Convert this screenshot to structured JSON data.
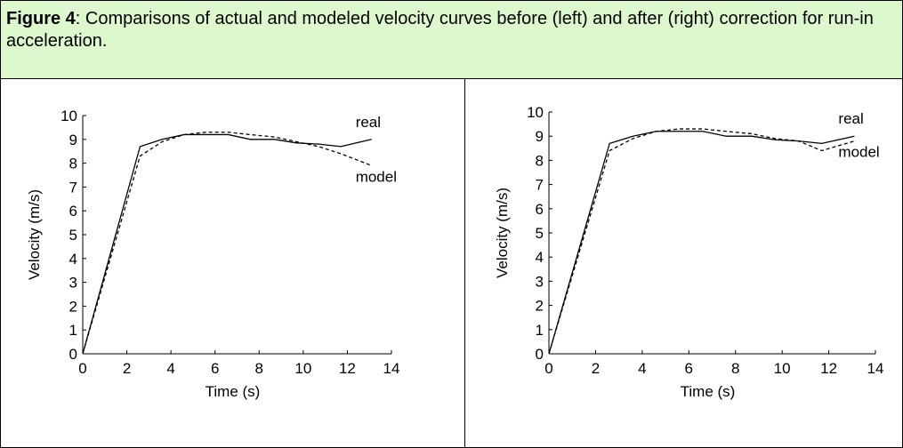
{
  "caption": {
    "label": "Figure 4",
    "text": ": Comparisons of actual and modeled velocity curves before (left) and after (right) correction for run-in acceleration."
  },
  "chart_data": [
    {
      "type": "line",
      "x_label": "Time (s)",
      "y_label": "Velocity (m/s)",
      "x": [
        0,
        2.6,
        3.6,
        4.6,
        5.6,
        6.6,
        7.6,
        8.7,
        9.7,
        10.7,
        11.7,
        13.1
      ],
      "series": [
        {
          "name": "real",
          "color": "#000000",
          "style": "solid",
          "values": [
            0,
            8.7,
            9.0,
            9.2,
            9.2,
            9.2,
            9.0,
            9.0,
            8.85,
            8.8,
            8.7,
            9.0
          ]
        },
        {
          "name": "model",
          "color": "#000000",
          "style": "dashed",
          "values": [
            0,
            8.3,
            8.9,
            9.2,
            9.3,
            9.3,
            9.2,
            9.1,
            8.9,
            8.7,
            8.4,
            7.9
          ]
        }
      ],
      "xlim": [
        0,
        14
      ],
      "xticks": [
        0,
        2,
        4,
        6,
        8,
        10,
        12,
        14
      ],
      "ylim": [
        0,
        10
      ],
      "yticks": [
        0,
        1,
        2,
        3,
        4,
        5,
        6,
        7,
        8,
        9,
        10
      ],
      "grid": false
    },
    {
      "type": "line",
      "x_label": "Time (s)",
      "y_label": "Velocity (m/s)",
      "x": [
        0,
        2.6,
        3.6,
        4.6,
        5.6,
        6.6,
        7.6,
        8.7,
        9.7,
        10.7,
        11.7,
        13.1
      ],
      "series": [
        {
          "name": "real",
          "color": "#000000",
          "style": "solid",
          "values": [
            0,
            8.7,
            9.0,
            9.2,
            9.2,
            9.2,
            9.0,
            9.0,
            8.85,
            8.8,
            8.7,
            9.0
          ]
        },
        {
          "name": "model",
          "color": "#000000",
          "style": "dashed",
          "values": [
            0,
            8.4,
            8.9,
            9.2,
            9.3,
            9.3,
            9.2,
            9.1,
            8.9,
            8.8,
            8.4,
            8.8
          ]
        }
      ],
      "xlim": [
        0,
        14
      ],
      "xticks": [
        0,
        2,
        4,
        6,
        8,
        10,
        12,
        14
      ],
      "ylim": [
        0,
        10
      ],
      "yticks": [
        0,
        1,
        2,
        3,
        4,
        5,
        6,
        7,
        8,
        9,
        10
      ],
      "grid": false
    }
  ]
}
